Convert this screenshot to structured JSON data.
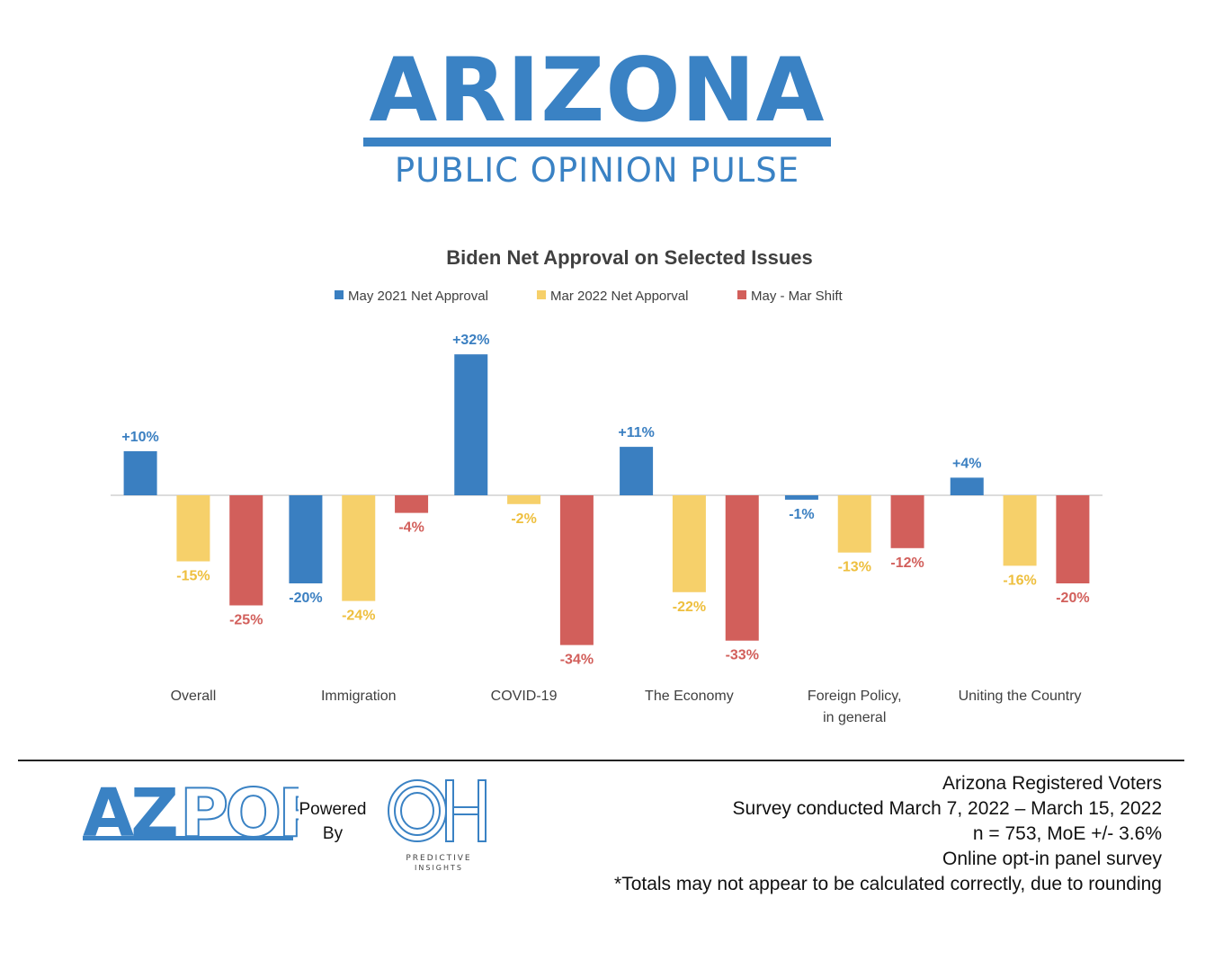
{
  "header": {
    "title": "ARIZONA",
    "subtitle": "PUBLIC OPINION PULSE"
  },
  "colors": {
    "brand_blue": "#3a82c4",
    "series1": "#3a7fc1",
    "series2": "#f6d06a",
    "series3": "#d25f5b",
    "label2": "#eebf3e"
  },
  "chart_data": {
    "type": "bar",
    "title": "Biden Net Approval on Selected Issues",
    "categories": [
      "Overall",
      "Immigration",
      "COVID-19",
      "The Economy",
      "Foreign Policy, in general",
      "Uniting the Country"
    ],
    "series": [
      {
        "name": "May 2021 Net Approval",
        "values": [
          10,
          -20,
          32,
          11,
          -1,
          4
        ],
        "labels": [
          "+10%",
          "-20%",
          "+32%",
          "+11%",
          "-1%",
          "+4%"
        ]
      },
      {
        "name": "Mar 2022 Net Apporval",
        "values": [
          -15,
          -24,
          -2,
          -22,
          -13,
          -16
        ],
        "labels": [
          "-15%",
          "-24%",
          "-2%",
          "-22%",
          "-13%",
          "-16%"
        ]
      },
      {
        "name": "May - Mar Shift",
        "values": [
          -25,
          -4,
          -34,
          -33,
          -12,
          -20
        ],
        "labels": [
          "-25%",
          "-4%",
          "-34%",
          "-33%",
          "-12%",
          "-20%"
        ]
      }
    ],
    "legend_position": "top",
    "grid": false
  },
  "footer": {
    "brand": "AZPOP",
    "powered_by": [
      "Powered",
      "By"
    ],
    "partner_mark": "OH",
    "partner_name": "PREDICTIVE",
    "partner_sub": "INSIGHTS",
    "notes": [
      "Arizona Registered Voters",
      "Survey conducted March 7, 2022 – March 15, 2022",
      "n = 753, MoE +/- 3.6%",
      "Online opt-in panel survey",
      "*Totals may not appear to be calculated correctly, due to rounding"
    ]
  }
}
